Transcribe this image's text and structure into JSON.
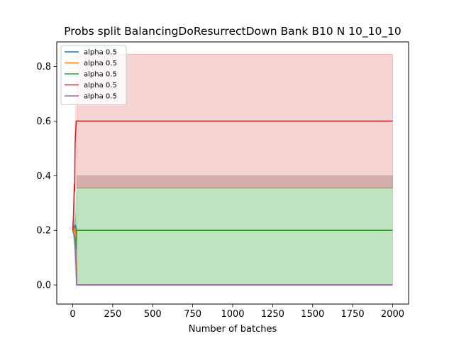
{
  "chart_data": {
    "type": "line",
    "title": "Probs split BalancingDoResurrectDown Bank B10 N 10_10_10",
    "xlabel": "Number of batches",
    "ylabel": "",
    "xlim": [
      -100,
      2100
    ],
    "ylim": [
      -0.07,
      0.89
    ],
    "xticks": [
      0,
      250,
      500,
      750,
      1000,
      1250,
      1500,
      1750,
      2000
    ],
    "yticks": [
      0.0,
      0.2,
      0.4,
      0.6,
      0.8
    ],
    "ytick_labels": [
      "0.0",
      "0.2",
      "0.4",
      "0.6",
      "0.8"
    ],
    "grid": false,
    "legend_position": "top-left",
    "series": [
      {
        "name": "alpha 0.5",
        "color": "#1f77b4",
        "x": [
          0,
          5,
          10,
          15,
          20,
          25,
          2000
        ],
        "y": [
          0.2,
          0.21,
          0.2,
          0.22,
          0.21,
          0.0,
          0.0
        ],
        "band_lower": [
          0.2,
          0.18,
          0.17,
          0.15,
          0.14,
          0.0,
          0.0
        ],
        "band_upper": [
          0.2,
          0.23,
          0.24,
          0.26,
          0.27,
          0.0,
          0.0
        ]
      },
      {
        "name": "alpha 0.5",
        "color": "#ff7f0e",
        "x": [
          0,
          5,
          10,
          15,
          20,
          25,
          2000
        ],
        "y": [
          0.2,
          0.19,
          0.21,
          0.2,
          0.19,
          0.0,
          0.0
        ],
        "band_lower": [
          0.2,
          0.17,
          0.16,
          0.15,
          0.14,
          0.0,
          0.0
        ],
        "band_upper": [
          0.2,
          0.22,
          0.24,
          0.25,
          0.26,
          0.0,
          0.0
        ]
      },
      {
        "name": "alpha 0.5",
        "color": "#2ca02c",
        "x": [
          0,
          5,
          10,
          15,
          20,
          25,
          2000
        ],
        "y": [
          0.2,
          0.19,
          0.18,
          0.17,
          0.13,
          0.2,
          0.2
        ],
        "band_lower": [
          0.2,
          0.15,
          0.1,
          0.05,
          0.0,
          0.0,
          0.0
        ],
        "band_upper": [
          0.2,
          0.23,
          0.26,
          0.3,
          0.33,
          0.355,
          0.355
        ]
      },
      {
        "name": "alpha 0.5",
        "color": "#d62728",
        "x": [
          0,
          5,
          10,
          12,
          15,
          18,
          22,
          25,
          2000
        ],
        "y": [
          0.2,
          0.26,
          0.37,
          0.34,
          0.52,
          0.56,
          0.6,
          0.6,
          0.6
        ],
        "band_lower": [
          0.2,
          0.22,
          0.26,
          0.3,
          0.34,
          0.35,
          0.355,
          0.355,
          0.355
        ],
        "band_upper": [
          0.2,
          0.32,
          0.5,
          0.55,
          0.7,
          0.78,
          0.84,
          0.845,
          0.845
        ]
      },
      {
        "name": "alpha 0.5",
        "color": "#9467bd",
        "x": [
          0,
          5,
          10,
          15,
          20,
          25,
          2000
        ],
        "y": [
          0.2,
          0.19,
          0.18,
          0.14,
          0.08,
          0.0,
          0.0
        ],
        "band_lower": [
          0.2,
          0.17,
          0.14,
          0.08,
          -0.02,
          0.0,
          0.0
        ],
        "band_upper": [
          0.2,
          0.22,
          0.23,
          0.24,
          0.25,
          0.0,
          0.0
        ]
      }
    ],
    "shaded_regions": [
      {
        "color": "#d62728",
        "x0": 25,
        "x1": 2000,
        "y0": 0.6,
        "y1": 0.845,
        "opacity": 0.2
      },
      {
        "color": "#d62728",
        "x0": 25,
        "x1": 2000,
        "y0": 0.355,
        "y1": 0.6,
        "opacity": 0.2
      },
      {
        "color": "#8c564b",
        "x0": 25,
        "x1": 2000,
        "y0": 0.355,
        "y1": 0.4,
        "opacity": 0.3
      },
      {
        "color": "#2ca02c",
        "x0": 25,
        "x1": 2000,
        "y0": 0.0,
        "y1": 0.355,
        "opacity": 0.3
      }
    ]
  }
}
